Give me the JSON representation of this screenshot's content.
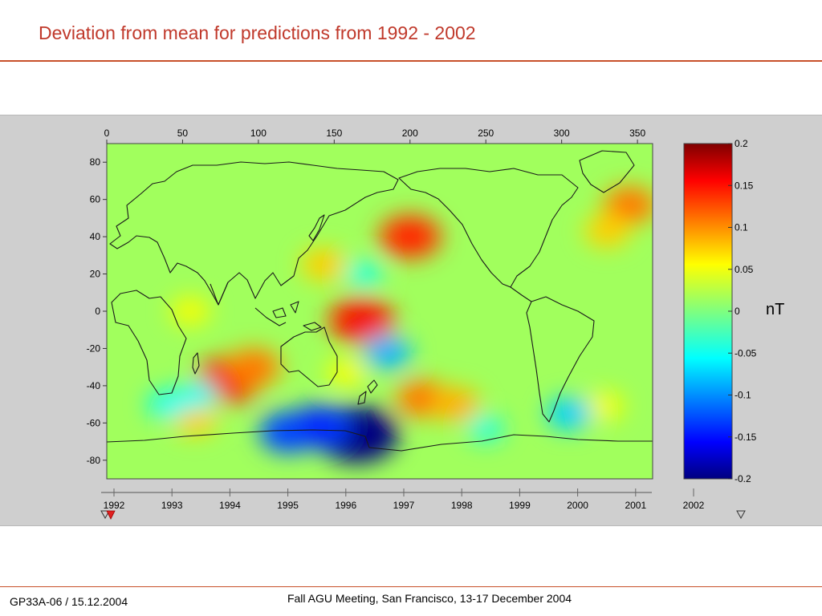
{
  "slide": {
    "title": "Deviation from mean for predictions from 1992 - 2002",
    "footer_left": "GP33A-06 / 15.12.2004",
    "footer_center": "Fall AGU Meeting, San Francisco, 13-17 December 2004"
  },
  "chart_data": {
    "type": "heatmap",
    "title": "",
    "xlabel": "",
    "ylabel": "",
    "xlim": [
      0,
      360
    ],
    "ylim": [
      -90,
      90
    ],
    "x_ticks": [
      0,
      50,
      100,
      150,
      200,
      250,
      300,
      350
    ],
    "y_ticks": [
      80,
      60,
      40,
      20,
      0,
      -20,
      -40,
      -60,
      -80
    ],
    "colorscale": "jet",
    "colorbar": {
      "label": "nT",
      "range": [
        -0.2,
        0.2
      ],
      "ticks": [
        "0.2",
        "0.15",
        "0.1",
        "0.05",
        "0",
        "-0.05",
        "-0.1",
        "-0.15",
        "-0.2"
      ]
    },
    "background_value": 0.015,
    "anomalies": [
      {
        "lon": 200,
        "lat": 40,
        "value": 0.13
      },
      {
        "lon": 80,
        "lat": -37,
        "value": 0.14
      },
      {
        "lon": 97,
        "lat": -30,
        "value": 0.1
      },
      {
        "lon": 168,
        "lat": -5,
        "value": 0.14
      },
      {
        "lon": 208,
        "lat": -47,
        "value": 0.1
      },
      {
        "lon": 230,
        "lat": -50,
        "value": 0.08
      },
      {
        "lon": 345,
        "lat": 57,
        "value": 0.1
      },
      {
        "lon": 330,
        "lat": 43,
        "value": 0.07
      },
      {
        "lon": 143,
        "lat": 25,
        "value": 0.07
      },
      {
        "lon": 58,
        "lat": -58,
        "value": 0.07
      },
      {
        "lon": 158,
        "lat": -33,
        "value": 0.05
      },
      {
        "lon": 328,
        "lat": -51,
        "value": 0.05
      },
      {
        "lon": 55,
        "lat": 0,
        "value": 0.05
      },
      {
        "lon": 165,
        "lat": -66,
        "value": -0.2
      },
      {
        "lon": 120,
        "lat": -65,
        "value": -0.12
      },
      {
        "lon": 140,
        "lat": -62,
        "value": -0.13
      },
      {
        "lon": 185,
        "lat": -22,
        "value": -0.08
      },
      {
        "lon": 305,
        "lat": -55,
        "value": -0.07
      },
      {
        "lon": 60,
        "lat": -45,
        "value": -0.05
      },
      {
        "lon": 170,
        "lat": 20,
        "value": -0.04
      },
      {
        "lon": 40,
        "lat": -50,
        "value": -0.05
      },
      {
        "lon": 250,
        "lat": -63,
        "value": -0.04
      }
    ],
    "time_slider": {
      "labels": [
        "1992",
        "1993",
        "1994",
        "1995",
        "1996",
        "1997",
        "1998",
        "1999",
        "2000",
        "2001",
        "2002"
      ],
      "range": [
        1992,
        2002
      ],
      "current": 1992
    }
  },
  "colors": {
    "title": "#c0392b",
    "rule": "#c8502a",
    "coastline": "#1a1a1a",
    "marker_active": "#e02020"
  }
}
